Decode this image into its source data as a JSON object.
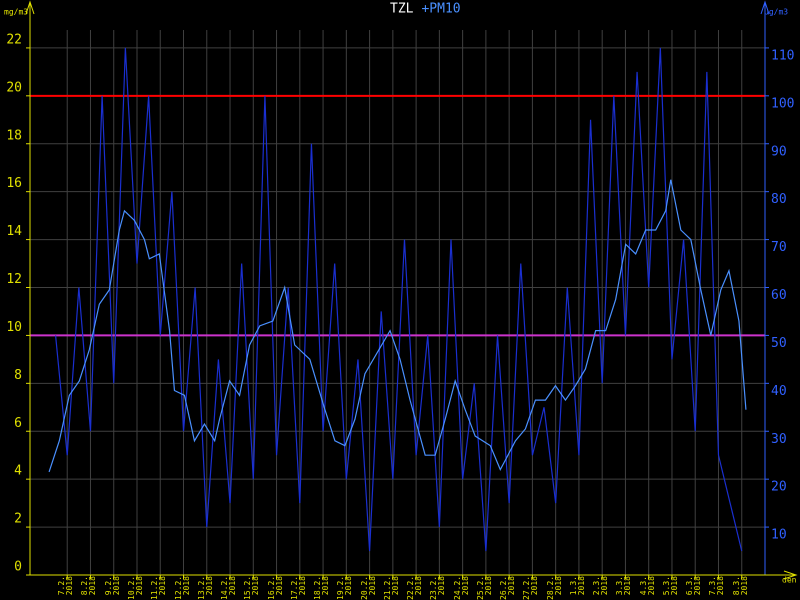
{
  "chart_data": {
    "type": "line",
    "ylabel": "mg/m3",
    "y2label": "µg/m3",
    "xlabel": "den",
    "xlim": [
      -1.6,
      30
    ],
    "ylim": [
      0,
      24
    ],
    "y2lim": [
      0,
      120
    ],
    "yticks": [
      0,
      2,
      4,
      6,
      8,
      10,
      12,
      14,
      16,
      18,
      20,
      22
    ],
    "y2ticks": [
      10,
      20,
      30,
      40,
      50,
      60,
      70,
      80,
      90,
      100,
      110
    ],
    "xticks": [
      {
        "value": 0,
        "label": "7.2. 2018"
      },
      {
        "value": 1,
        "label": "8.2. 2018"
      },
      {
        "value": 2,
        "label": "9.2. 2018"
      },
      {
        "value": 3,
        "label": "10.2. 2018"
      },
      {
        "value": 4,
        "label": "11.2. 2018"
      },
      {
        "value": 5,
        "label": "12.2. 2018"
      },
      {
        "value": 6,
        "label": "13.2. 2018"
      },
      {
        "value": 7,
        "label": "14.2. 2018"
      },
      {
        "value": 8,
        "label": "15.2. 2018"
      },
      {
        "value": 9,
        "label": "16.2. 2018"
      },
      {
        "value": 10,
        "label": "17.2. 2018"
      },
      {
        "value": 11,
        "label": "18.2. 2018"
      },
      {
        "value": 12,
        "label": "19.2. 2018"
      },
      {
        "value": 13,
        "label": "20.2. 2018"
      },
      {
        "value": 14,
        "label": "21.2. 2018"
      },
      {
        "value": 15,
        "label": "22.2. 2018"
      },
      {
        "value": 16,
        "label": "23.2. 2018"
      },
      {
        "value": 17,
        "label": "24.2. 2018"
      },
      {
        "value": 18,
        "label": "25.2. 2018"
      },
      {
        "value": 19,
        "label": "26.2. 2018"
      },
      {
        "value": 20,
        "label": "27.2. 2018"
      },
      {
        "value": 21,
        "label": "28.2. 2018"
      },
      {
        "value": 22,
        "label": "1.3. 2018"
      },
      {
        "value": 23,
        "label": "2.3. 2018"
      },
      {
        "value": 24,
        "label": "3.3. 2018"
      },
      {
        "value": 25,
        "label": "4.3. 2018"
      },
      {
        "value": 26,
        "label": "5.3. 2018"
      },
      {
        "value": 27,
        "label": "6.3. 2018"
      },
      {
        "value": 28,
        "label": "7.3. 2018"
      },
      {
        "value": 29,
        "label": "8.3. 2018"
      }
    ],
    "grid": true,
    "grid_color": "#404040",
    "axis_color": "#e0e000",
    "axis2_color": "#3060ff",
    "hlines": [
      {
        "value": 20,
        "color": "#ff0000"
      },
      {
        "value": 10,
        "color": "#cc33cc"
      }
    ],
    "series": [
      {
        "name": "TZL",
        "color": "#1a2fd0",
        "x": [
          -0.5,
          0,
          0.5,
          1,
          1.5,
          2,
          2.5,
          3,
          3.5,
          4,
          4.5,
          5,
          5.5,
          6,
          6.5,
          7,
          7.5,
          8,
          8.5,
          9,
          9.5,
          10,
          10.5,
          11,
          11.5,
          12,
          12.5,
          13,
          13.5,
          14,
          14.5,
          15,
          15.5,
          16,
          16.5,
          17,
          17.5,
          18,
          18.5,
          19,
          19.5,
          20,
          20.5,
          21,
          21.5,
          22,
          22.5,
          23,
          23.5,
          24,
          24.5,
          25,
          25.5,
          26,
          26.5,
          27,
          27.5,
          28,
          28.5,
          29
        ],
        "values": [
          10,
          5,
          12,
          6,
          20,
          8,
          22,
          13,
          20,
          10,
          16,
          6,
          12,
          2,
          9,
          3,
          13,
          4,
          20,
          5,
          12,
          3,
          18,
          6,
          13,
          4,
          9,
          1,
          11,
          4,
          14,
          5,
          10,
          2,
          14,
          4,
          8,
          1,
          10,
          3,
          13,
          5,
          7,
          3,
          12,
          5,
          19,
          8,
          20,
          10,
          21,
          12,
          22,
          9,
          14,
          6,
          21,
          5,
          3,
          1
        ]
      },
      {
        "name": "+PM10",
        "color": "#4a90ff",
        "axis": "y2",
        "x": [
          -0.78,
          -0.34,
          0.09,
          0.52,
          0.95,
          1.38,
          1.81,
          2.24,
          2.46,
          2.89,
          3.32,
          3.53,
          3.96,
          4.4,
          4.61,
          5.04,
          5.47,
          5.9,
          6.34,
          6.55,
          6.98,
          7.41,
          7.84,
          8.28,
          8.84,
          9.35,
          9.78,
          10.43,
          11.08,
          11.51,
          11.94,
          12.37,
          12.8,
          13.88,
          14.31,
          14.74,
          15.39,
          15.82,
          16.25,
          16.68,
          17.11,
          17.54,
          18.19,
          18.62,
          18.84,
          19.27,
          19.7,
          20.13,
          20.56,
          20.99,
          21.42,
          21.85,
          22.28,
          22.72,
          23.15,
          23.58,
          24.01,
          24.44,
          24.87,
          25.3,
          25.73,
          25.95,
          26.38,
          26.81,
          27.24,
          27.67,
          28.1,
          28.45,
          28.88,
          29.18
        ],
        "values": [
          21.5,
          28,
          37.5,
          40.5,
          47,
          56.5,
          59.5,
          72,
          76,
          74,
          70,
          66,
          67,
          51,
          38.5,
          37.5,
          28,
          31.5,
          28,
          32.5,
          40.5,
          37.5,
          48,
          52,
          53,
          60,
          48,
          45,
          34.5,
          28,
          27,
          32.5,
          42,
          51,
          45,
          36.5,
          25,
          25,
          32.5,
          40.5,
          34.5,
          29,
          27,
          22,
          24,
          28,
          30.5,
          36.5,
          36.5,
          39.5,
          36.5,
          39.5,
          43,
          51,
          51,
          57.5,
          69,
          67,
          72,
          72,
          76,
          82.5,
          72,
          70,
          59.5,
          50,
          59.5,
          63.5,
          53,
          34.5
        ]
      }
    ]
  }
}
